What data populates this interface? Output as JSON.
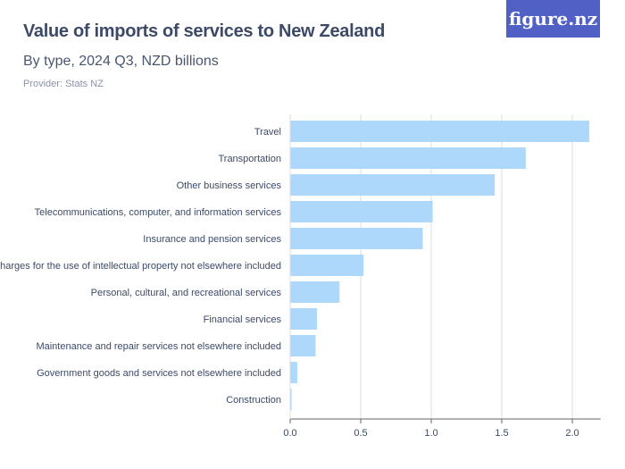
{
  "header": {
    "title": "Value of imports of services to New Zealand",
    "subtitle": "By type, 2024 Q3, NZD billions",
    "provider": "Provider: Stats NZ",
    "logo": "figure.nz"
  },
  "colors": {
    "bar": "#aed8fb",
    "grid": "#dddddd",
    "axis": "#666666",
    "logo_bg": "#5060c4"
  },
  "chart_data": {
    "type": "bar",
    "orientation": "horizontal",
    "title": "Value of imports of services to New Zealand",
    "subtitle": "By type, 2024 Q3, NZD billions",
    "xlabel": "",
    "ylabel": "",
    "xlim": [
      0,
      2.2
    ],
    "ticks": [
      "0.0",
      "0.5",
      "1.0",
      "1.5",
      "2.0"
    ],
    "tick_values": [
      0,
      0.5,
      1,
      1.5,
      2
    ],
    "grid": true,
    "categories": [
      "Travel",
      "Transportation",
      "Other business services",
      "Telecommunications, computer, and information services",
      "Insurance and pension services",
      "Charges for the use of intellectual property not elsewhere included",
      "Personal, cultural, and recreational services",
      "Financial services",
      "Maintenance and repair services not elsewhere included",
      "Government goods and services not elsewhere included",
      "Construction"
    ],
    "values": [
      2.12,
      1.67,
      1.45,
      1.01,
      0.94,
      0.52,
      0.35,
      0.19,
      0.18,
      0.05,
      0.01
    ]
  }
}
